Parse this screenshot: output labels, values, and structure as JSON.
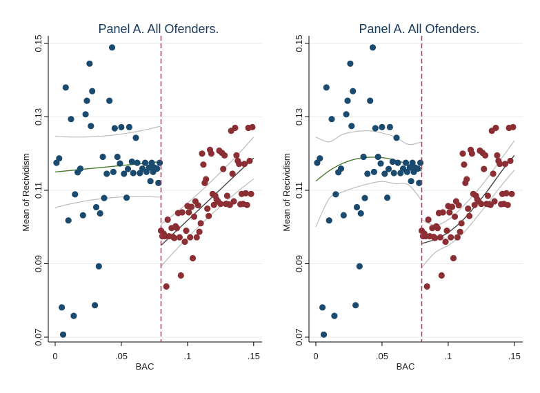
{
  "chart_data": [
    {
      "type": "scatter",
      "title": "Panel A. All Ofenders.",
      "xlabel": "BAC",
      "ylabel": "Mean of Recividism",
      "xlim": [
        0,
        0.15
      ],
      "ylim": [
        0.07,
        0.15
      ],
      "xticks": [
        0,
        0.05,
        0.1,
        0.15
      ],
      "xtick_labels": [
        "0",
        ".05",
        ".1",
        ".15"
      ],
      "yticks": [
        0.07,
        0.09,
        0.11,
        0.13,
        0.15
      ],
      "ytick_labels": [
        "0.07",
        "0.09",
        "0.11",
        "0.13",
        "0.15"
      ],
      "grid": true,
      "cutoff": 0.08,
      "colors": {
        "left": "#1a4a6e",
        "right": "#8b2f35",
        "fit_left": "#4a7a2d",
        "fit_right": "#444444",
        "ci": "#bbbbbb",
        "cutoff": "#c8245c"
      },
      "series": [
        {
          "side": "left",
          "x": [
            0.001,
            0.003,
            0.005,
            0.006,
            0.008,
            0.01,
            0.012,
            0.014,
            0.015,
            0.017,
            0.019,
            0.021,
            0.023,
            0.024,
            0.026,
            0.027,
            0.028,
            0.03,
            0.031,
            0.033,
            0.034,
            0.036,
            0.037,
            0.039,
            0.041,
            0.043,
            0.044,
            0.045,
            0.047,
            0.049,
            0.05,
            0.052,
            0.054,
            0.055,
            0.056,
            0.058,
            0.059,
            0.061,
            0.062,
            0.064,
            0.066,
            0.068,
            0.069,
            0.071,
            0.072,
            0.073,
            0.074,
            0.075,
            0.077,
            0.078,
            0.079
          ],
          "y": [
            0.1175,
            0.1187,
            0.0781,
            0.0707,
            0.138,
            0.1018,
            0.1294,
            0.0758,
            0.1089,
            0.1149,
            0.1159,
            0.1032,
            0.1307,
            0.1344,
            0.1445,
            0.1275,
            0.137,
            0.0787,
            0.1054,
            0.0893,
            0.1037,
            0.1191,
            0.1079,
            0.1145,
            0.1344,
            0.1489,
            0.115,
            0.1269,
            0.1191,
            0.1173,
            0.1272,
            0.1145,
            0.108,
            0.1158,
            0.1272,
            0.1178,
            0.1147,
            0.1243,
            0.1175,
            0.1147,
            0.1159,
            0.1175,
            0.115,
            0.1162,
            0.1125,
            0.1175,
            0.115,
            0.1162,
            0.1159,
            0.112,
            0.1175
          ]
        },
        {
          "side": "right",
          "x": [
            0.08,
            0.081,
            0.082,
            0.083,
            0.084,
            0.085,
            0.086,
            0.088,
            0.089,
            0.09,
            0.091,
            0.092,
            0.093,
            0.094,
            0.095,
            0.096,
            0.098,
            0.099,
            0.1,
            0.101,
            0.102,
            0.103,
            0.104,
            0.105,
            0.106,
            0.107,
            0.108,
            0.109,
            0.11,
            0.111,
            0.112,
            0.113,
            0.114,
            0.115,
            0.116,
            0.117,
            0.118,
            0.119,
            0.12,
            0.121,
            0.122,
            0.123,
            0.124,
            0.125,
            0.126,
            0.127,
            0.128,
            0.129,
            0.13,
            0.131,
            0.132,
            0.133,
            0.134,
            0.135,
            0.136,
            0.137,
            0.138,
            0.139,
            0.14,
            0.141,
            0.142,
            0.143,
            0.144,
            0.145,
            0.146,
            0.147,
            0.148,
            0.149
          ],
          "y": [
            0.099,
            0.0975,
            0.0982,
            0.0975,
            0.0838,
            0.102,
            0.0975,
            0.0997,
            0.0973,
            0.097,
            0.1002,
            0.0997,
            0.1038,
            0.0972,
            0.0868,
            0.104,
            0.096,
            0.099,
            0.1057,
            0.104,
            0.0972,
            0.1055,
            0.0915,
            0.1028,
            0.107,
            0.0972,
            0.1059,
            0.0987,
            0.101,
            0.12,
            0.117,
            0.112,
            0.113,
            0.105,
            0.103,
            0.121,
            0.12,
            0.109,
            0.106,
            0.1085,
            0.1075,
            0.107,
            0.1208,
            0.1063,
            0.1202,
            0.1158,
            0.1195,
            0.1063,
            0.1085,
            0.1062,
            0.106,
            0.1262,
            0.1145,
            0.107,
            0.127,
            0.1195,
            0.118,
            0.1172,
            0.1062,
            0.109,
            0.1063,
            0.1172,
            0.1092,
            0.106,
            0.127,
            0.118,
            0.109,
            0.1272
          ]
        }
      ],
      "fit": {
        "order": "linear",
        "left_intercept": 0.115,
        "left_slope": 0.035,
        "right_intercept": 0.095,
        "right_slope": 0.34
      },
      "ci": {
        "left_width": 0.0085,
        "right_width": 0.0045
      }
    },
    {
      "type": "scatter",
      "title": "Panel A. All Ofenders.",
      "xlabel": "BAC",
      "ylabel": "Mean of Recividism",
      "xlim": [
        0,
        0.15
      ],
      "ylim": [
        0.07,
        0.15
      ],
      "xticks": [
        0,
        0.05,
        0.1,
        0.15
      ],
      "xtick_labels": [
        "0",
        ".05",
        ".1",
        ".15"
      ],
      "yticks": [
        0.07,
        0.09,
        0.11,
        0.13,
        0.15
      ],
      "ytick_labels": [
        "0.07",
        "0.09",
        "0.11",
        "0.13",
        "0.15"
      ],
      "grid": true,
      "cutoff": 0.08,
      "colors": {
        "left": "#1a4a6e",
        "right": "#8b2f35",
        "fit_left": "#4a7a2d",
        "fit_right": "#444444",
        "ci": "#bbbbbb",
        "cutoff": "#c8245c"
      },
      "series": [
        {
          "side": "left",
          "x": [
            0.001,
            0.003,
            0.005,
            0.006,
            0.008,
            0.01,
            0.012,
            0.014,
            0.015,
            0.017,
            0.019,
            0.021,
            0.023,
            0.024,
            0.026,
            0.027,
            0.028,
            0.03,
            0.031,
            0.033,
            0.034,
            0.036,
            0.037,
            0.039,
            0.041,
            0.043,
            0.044,
            0.045,
            0.047,
            0.049,
            0.05,
            0.052,
            0.054,
            0.055,
            0.056,
            0.058,
            0.059,
            0.061,
            0.062,
            0.064,
            0.066,
            0.068,
            0.069,
            0.071,
            0.072,
            0.073,
            0.074,
            0.075,
            0.077,
            0.078,
            0.079
          ],
          "y": [
            0.1175,
            0.1187,
            0.0781,
            0.0707,
            0.138,
            0.1018,
            0.1294,
            0.0758,
            0.1089,
            0.1149,
            0.1159,
            0.1032,
            0.1307,
            0.1344,
            0.1445,
            0.1275,
            0.137,
            0.0787,
            0.1054,
            0.0893,
            0.1037,
            0.1191,
            0.1079,
            0.1145,
            0.1344,
            0.1489,
            0.115,
            0.1269,
            0.1191,
            0.1173,
            0.1272,
            0.1145,
            0.108,
            0.1158,
            0.1272,
            0.1178,
            0.1147,
            0.1243,
            0.1175,
            0.1147,
            0.1159,
            0.1175,
            0.115,
            0.1162,
            0.1125,
            0.1175,
            0.115,
            0.1162,
            0.1159,
            0.112,
            0.1175
          ]
        },
        {
          "side": "right",
          "x": [
            0.08,
            0.081,
            0.082,
            0.083,
            0.084,
            0.085,
            0.086,
            0.088,
            0.089,
            0.09,
            0.091,
            0.092,
            0.093,
            0.094,
            0.095,
            0.096,
            0.098,
            0.099,
            0.1,
            0.101,
            0.102,
            0.103,
            0.104,
            0.105,
            0.106,
            0.107,
            0.108,
            0.109,
            0.11,
            0.111,
            0.112,
            0.113,
            0.114,
            0.115,
            0.116,
            0.117,
            0.118,
            0.119,
            0.12,
            0.121,
            0.122,
            0.123,
            0.124,
            0.125,
            0.126,
            0.127,
            0.128,
            0.129,
            0.13,
            0.131,
            0.132,
            0.133,
            0.134,
            0.135,
            0.136,
            0.137,
            0.138,
            0.139,
            0.14,
            0.141,
            0.142,
            0.143,
            0.144,
            0.145,
            0.146,
            0.147,
            0.148,
            0.149
          ],
          "y": [
            0.099,
            0.0975,
            0.0982,
            0.0975,
            0.0838,
            0.102,
            0.0975,
            0.0997,
            0.0973,
            0.097,
            0.1002,
            0.0997,
            0.1038,
            0.0972,
            0.0868,
            0.104,
            0.096,
            0.099,
            0.1057,
            0.104,
            0.0972,
            0.1055,
            0.0915,
            0.1028,
            0.107,
            0.0972,
            0.1059,
            0.0987,
            0.101,
            0.12,
            0.117,
            0.112,
            0.113,
            0.105,
            0.103,
            0.121,
            0.12,
            0.109,
            0.106,
            0.1085,
            0.1075,
            0.107,
            0.1208,
            0.1063,
            0.1202,
            0.1158,
            0.1195,
            0.1063,
            0.1085,
            0.1062,
            0.106,
            0.1262,
            0.1145,
            0.107,
            0.127,
            0.1195,
            0.118,
            0.1172,
            0.1062,
            0.109,
            0.1063,
            0.1172,
            0.1092,
            0.106,
            0.127,
            0.118,
            0.109,
            0.1272
          ]
        }
      ],
      "fit": {
        "order": "quadratic",
        "left_curve": [
          [
            0.0,
            0.1125
          ],
          [
            0.01,
            0.1153
          ],
          [
            0.02,
            0.1173
          ],
          [
            0.03,
            0.1185
          ],
          [
            0.04,
            0.119
          ],
          [
            0.05,
            0.1189
          ],
          [
            0.06,
            0.1182
          ],
          [
            0.07,
            0.117
          ],
          [
            0.08,
            0.1152
          ]
        ],
        "right_curve": [
          [
            0.08,
            0.0955
          ],
          [
            0.09,
            0.0966
          ],
          [
            0.1,
            0.0985
          ],
          [
            0.11,
            0.1015
          ],
          [
            0.12,
            0.1055
          ],
          [
            0.13,
            0.11
          ],
          [
            0.14,
            0.115
          ],
          [
            0.15,
            0.1195
          ]
        ]
      },
      "ci": {
        "left_upper": [
          [
            0.0,
            0.1245
          ],
          [
            0.01,
            0.1232
          ],
          [
            0.02,
            0.1252
          ],
          [
            0.03,
            0.126
          ],
          [
            0.04,
            0.1262
          ],
          [
            0.05,
            0.1256
          ],
          [
            0.06,
            0.1245
          ],
          [
            0.07,
            0.1225
          ],
          [
            0.08,
            0.1232
          ]
        ],
        "left_lower": [
          [
            0.0,
            0.1
          ],
          [
            0.01,
            0.1077
          ],
          [
            0.02,
            0.1095
          ],
          [
            0.03,
            0.1108
          ],
          [
            0.04,
            0.1118
          ],
          [
            0.05,
            0.1124
          ],
          [
            0.06,
            0.1118
          ],
          [
            0.07,
            0.1115
          ],
          [
            0.08,
            0.1072
          ]
        ],
        "right_upper": [
          [
            0.08,
            0.102
          ],
          [
            0.09,
            0.1005
          ],
          [
            0.1,
            0.102
          ],
          [
            0.11,
            0.1052
          ],
          [
            0.12,
            0.109
          ],
          [
            0.13,
            0.1135
          ],
          [
            0.14,
            0.1185
          ],
          [
            0.15,
            0.1235
          ]
        ],
        "right_lower": [
          [
            0.08,
            0.089
          ],
          [
            0.09,
            0.093
          ],
          [
            0.1,
            0.095
          ],
          [
            0.11,
            0.0978
          ],
          [
            0.12,
            0.102
          ],
          [
            0.13,
            0.1065
          ],
          [
            0.14,
            0.1112
          ],
          [
            0.15,
            0.1155
          ]
        ]
      }
    }
  ]
}
